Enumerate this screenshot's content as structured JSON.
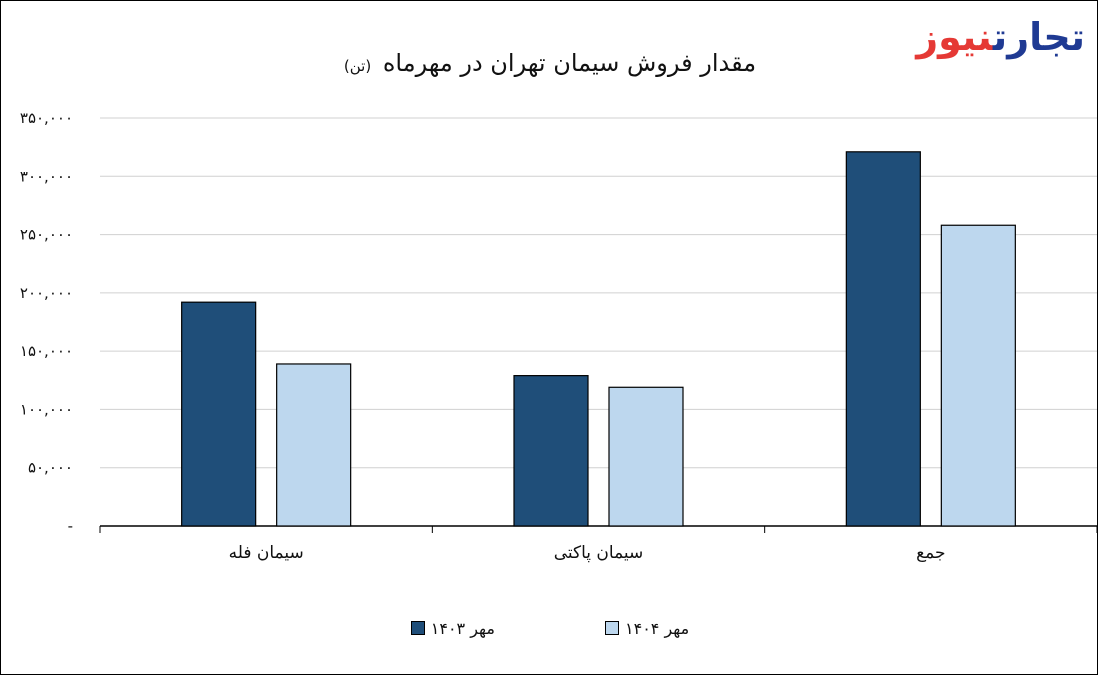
{
  "logo": {
    "part1": "تجارت",
    "part2": "نیوز"
  },
  "chart_data": {
    "type": "bar",
    "title": "مقدار فروش سیمان تهران در مهرماه",
    "unit": "(تن)",
    "categories": [
      "سیمان فله",
      "سیمان پاکتی",
      "جمع"
    ],
    "series": [
      {
        "name": "مهر ۱۴۰۳",
        "values": [
          192000,
          129000,
          321000
        ],
        "color": "#1f4e79"
      },
      {
        "name": "مهر ۱۴۰۴",
        "values": [
          139000,
          119000,
          258000
        ],
        "color": "#bdd7ee"
      }
    ],
    "yticks": [
      0,
      50000,
      100000,
      150000,
      200000,
      250000,
      300000,
      350000
    ],
    "ytick_labels": [
      "-",
      "۵۰,۰۰۰",
      "۱۰۰,۰۰۰",
      "۱۵۰,۰۰۰",
      "۲۰۰,۰۰۰",
      "۲۵۰,۰۰۰",
      "۳۰۰,۰۰۰",
      "۳۵۰,۰۰۰"
    ],
    "ylim": [
      0,
      350000
    ],
    "grid": true,
    "legend_position": "bottom"
  }
}
